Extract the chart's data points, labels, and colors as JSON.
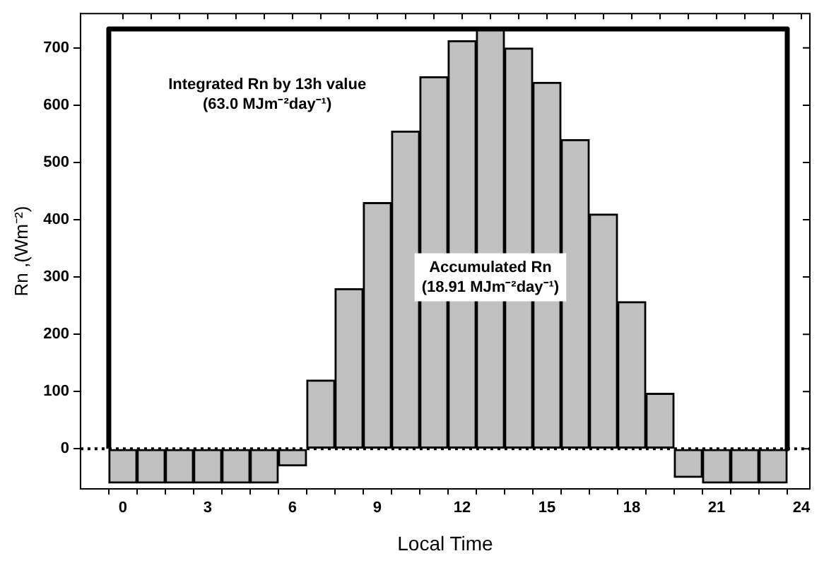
{
  "chart_data": {
    "type": "bar",
    "xlabel": "Local Time",
    "ylabel": "Rn ,(Wm⁻²)",
    "series": [
      {
        "color": "#c0c0c0",
        "x": [
          0,
          1,
          2,
          3,
          4,
          5,
          6,
          7,
          8,
          9,
          10,
          11,
          12,
          13,
          14,
          15,
          16,
          17,
          18,
          19,
          20,
          21,
          22,
          23
        ],
        "values": [
          -60,
          -60,
          -60,
          -60,
          -60,
          -60,
          -30,
          120,
          280,
          430,
          555,
          650,
          713,
          733,
          700,
          640,
          540,
          410,
          257,
          97,
          -50,
          -60,
          -60,
          -60
        ]
      },
      {
        "type": "line",
        "color": "#000000",
        "x": [
          -0.5,
          -0.5,
          23.5,
          23.5
        ],
        "values": [
          0,
          733,
          733,
          0
        ]
      }
    ],
    "xlim": [
      -1.5,
      24.3
    ],
    "ylim": [
      -70,
      760
    ],
    "xticks": [
      0,
      {
        "value": 1,
        "label": null
      },
      {
        "value": 2,
        "label": null
      },
      3,
      {
        "value": 4,
        "label": null
      },
      {
        "value": 5,
        "label": null
      },
      6,
      {
        "value": 7,
        "label": null
      },
      {
        "value": 8,
        "label": null
      },
      9,
      {
        "value": 10,
        "label": null
      },
      {
        "value": 11,
        "label": null
      },
      12,
      {
        "value": 13,
        "label": null
      },
      {
        "value": 14,
        "label": null
      },
      15,
      {
        "value": 16,
        "label": null
      },
      {
        "value": 17,
        "label": null
      },
      18,
      {
        "value": 19,
        "label": null
      },
      {
        "value": 20,
        "label": null
      },
      21,
      {
        "value": 22,
        "label": null
      },
      {
        "value": 23,
        "label": null
      },
      24
    ],
    "yticks": [
      0,
      100,
      200,
      300,
      400,
      500,
      600,
      700
    ],
    "ref_lines": [
      {
        "axis": "y",
        "value": 0,
        "line_style": "dotted"
      }
    ],
    "annotations": [
      "Integrated Rn by 13h value\n(63.0 MJm⁻²day⁻¹)",
      "Accumulated Rn\n(18.91 MJm⁻²day⁻¹)"
    ],
    "grid": false
  }
}
